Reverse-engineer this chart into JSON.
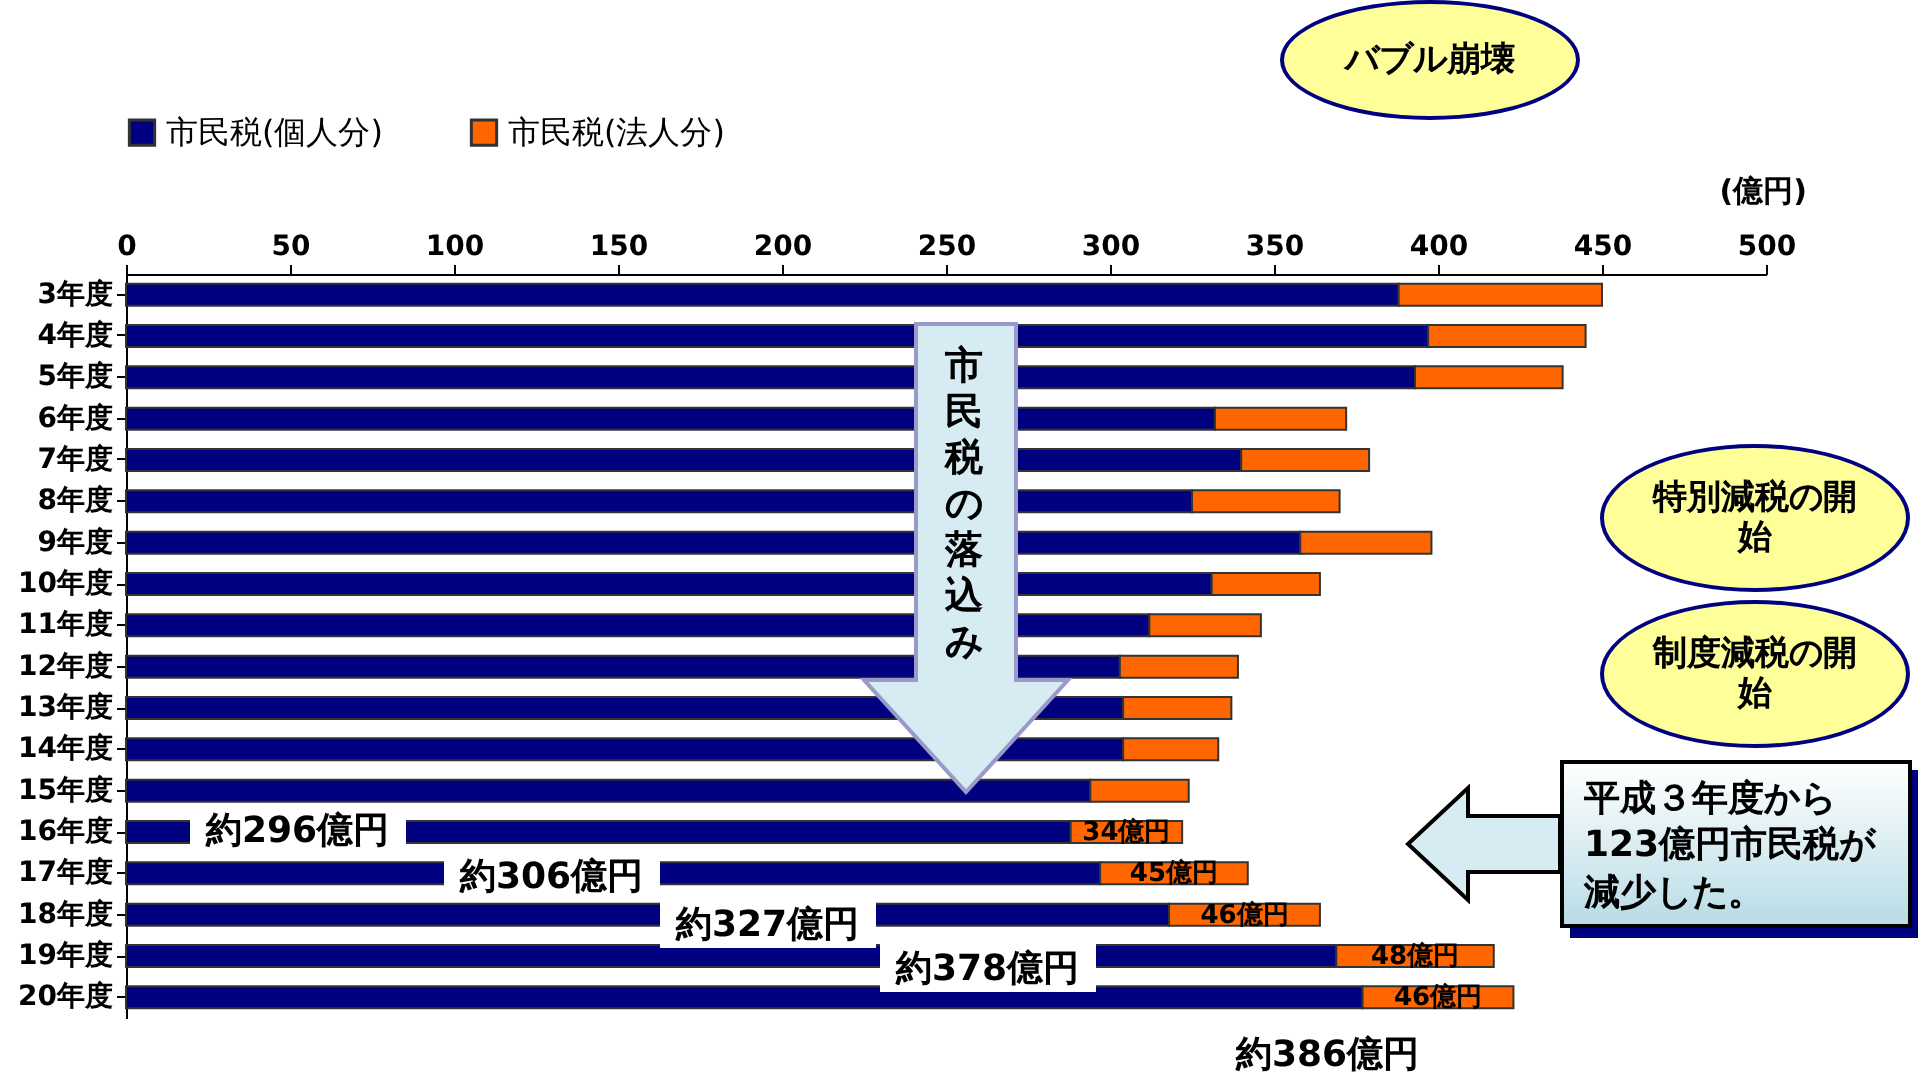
{
  "chart_data": {
    "type": "bar",
    "orientation": "horizontal",
    "stacked": true,
    "xlabel": "(億円)",
    "categories": [
      "3年度",
      "4年度",
      "5年度",
      "6年度",
      "7年度",
      "8年度",
      "9年度",
      "10年度",
      "11年度",
      "12年度",
      "13年度",
      "14年度",
      "15年度",
      "16年度",
      "17年度",
      "18年度",
      "19年度",
      "20年度"
    ],
    "series": [
      {
        "name": "市民税(個人分)",
        "color": "#000080",
        "values": [
          388,
          397,
          393,
          332,
          340,
          325,
          358,
          331,
          312,
          303,
          304,
          304,
          294,
          288,
          297,
          318,
          369,
          377
        ]
      },
      {
        "name": "市民税(法人分)",
        "color": "#ff6600",
        "values": [
          62,
          48,
          45,
          40,
          39,
          45,
          40,
          33,
          34,
          36,
          33,
          29,
          30,
          34,
          45,
          46,
          48,
          46
        ],
        "value_labels": [
          null,
          null,
          null,
          null,
          null,
          null,
          null,
          null,
          null,
          null,
          null,
          null,
          null,
          "34億円",
          "45億円",
          "46億円",
          "48億円",
          "46億円"
        ]
      }
    ],
    "xlim": [
      0,
      500
    ],
    "xticks": [
      0,
      50,
      100,
      150,
      200,
      250,
      300,
      350,
      400,
      450,
      500
    ],
    "legend": "top",
    "grid": false,
    "annotations": [
      "バブル崩壊",
      "特別減税の開始",
      "制度減税の開始",
      "市民税の落込み",
      "平成３年度から123億円市民税が減少した。",
      "約296億円",
      "約306億円",
      "約327億円",
      "約378億円",
      "約386億円"
    ]
  }
}
